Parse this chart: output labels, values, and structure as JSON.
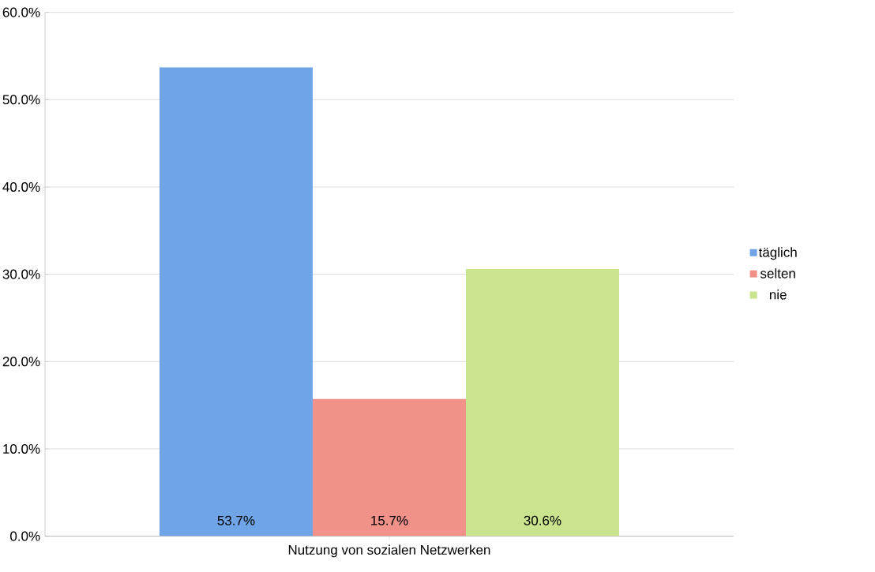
{
  "chart_data": {
    "type": "bar",
    "categories": [
      "Nutzung von sozialen Netzwerken"
    ],
    "series": [
      {
        "name": "täglich",
        "color": "#6fa5e6",
        "values": [
          53.7
        ],
        "value_labels": [
          "53.7%"
        ]
      },
      {
        "name": "selten",
        "color": "#f0918a",
        "values": [
          15.7
        ],
        "value_labels": [
          "15.7%"
        ]
      },
      {
        "name": "nie",
        "color": "#c9e48c",
        "values": [
          30.6
        ],
        "value_labels": [
          "30.6%"
        ]
      }
    ],
    "ylim": [
      0,
      60
    ],
    "yticks": [
      {
        "value": 0,
        "label": "0.0%"
      },
      {
        "value": 10,
        "label": "10.0%"
      },
      {
        "value": 20,
        "label": "20.0%"
      },
      {
        "value": 30,
        "label": "30.0%"
      },
      {
        "value": 40,
        "label": "40.0%"
      },
      {
        "value": 50,
        "label": "50.0%"
      },
      {
        "value": 60,
        "label": "60.0%"
      }
    ],
    "grid": "y",
    "legend": "right"
  }
}
